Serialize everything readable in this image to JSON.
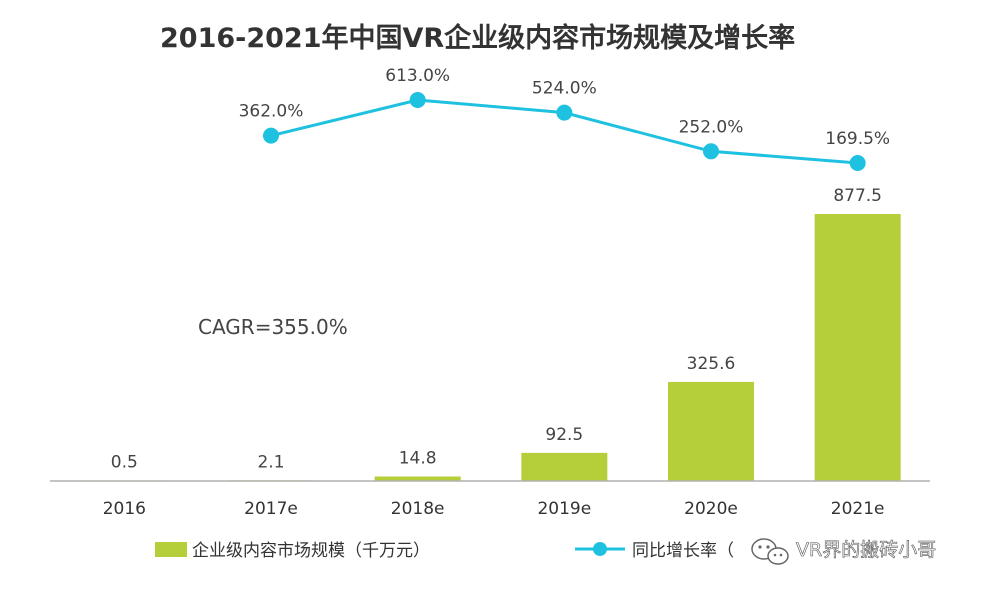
{
  "chart_data": {
    "type": "bar",
    "title": "2016-2021年中国VR企业级内容市场规模及增长率",
    "categories": [
      "2016",
      "2017e",
      "2018e",
      "2019e",
      "2020e",
      "2021e"
    ],
    "bar_series": {
      "name": "企业级内容市场规模（千万元）",
      "values": [
        0.5,
        2.1,
        14.8,
        92.5,
        325.6,
        877.5
      ],
      "labels": [
        "0.5",
        "2.1",
        "14.8",
        "92.5",
        "325.6",
        "877.5"
      ],
      "color": "#b5cf3a"
    },
    "line_series": {
      "name": "同比增长率（%）",
      "legend_visible_text": "同比增长率（",
      "points": [
        {
          "category": "2017e",
          "value": 362.0,
          "label": "362.0%"
        },
        {
          "category": "2018e",
          "value": 613.0,
          "label": "613.0%"
        },
        {
          "category": "2019e",
          "value": 524.0,
          "label": "524.0%"
        },
        {
          "category": "2020e",
          "value": 252.0,
          "label": "252.0%"
        },
        {
          "category": "2021e",
          "value": 169.5,
          "label": "169.5%"
        }
      ],
      "color": "#1fc1e0"
    },
    "annotations": [
      "CAGR=355.0%"
    ],
    "ylim_bar": [
      0,
      877.5
    ],
    "ylim_line": [
      0,
      700
    ],
    "grid": false,
    "legend_position": "bottom"
  },
  "watermark": {
    "text": "VR界的搬砖小哥",
    "icon": "wechat-icon"
  }
}
